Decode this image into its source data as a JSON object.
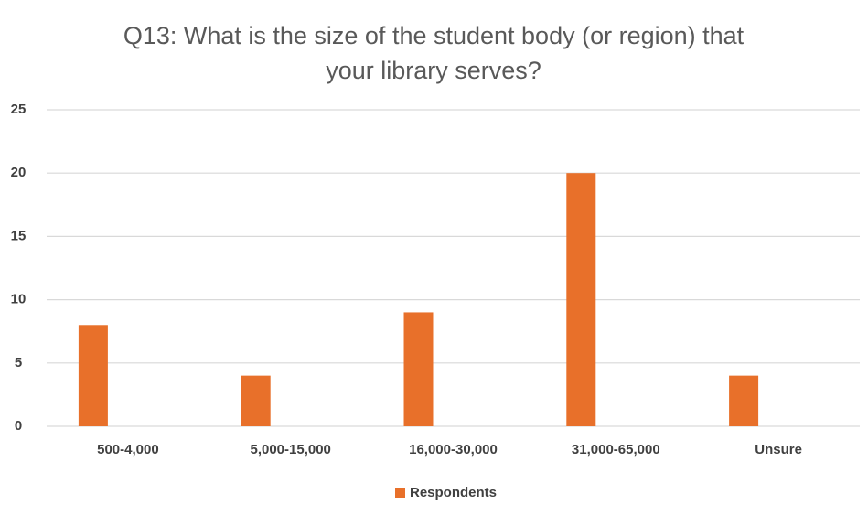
{
  "chart_data": {
    "type": "bar",
    "title": "Q13: What is the size of the student body (or region) that your library serves?",
    "categories": [
      "500-4,000",
      "5,000-15,000",
      "16,000-30,000",
      "31,000-65,000",
      "Unsure"
    ],
    "series": [
      {
        "name": "Respondents",
        "color": "#e8702a",
        "values": [
          8,
          4,
          9,
          20,
          4
        ]
      }
    ],
    "ylim": [
      0,
      25
    ],
    "yticks": [
      0,
      5,
      10,
      15,
      20,
      25
    ],
    "grid": true,
    "legend": "bottom"
  }
}
